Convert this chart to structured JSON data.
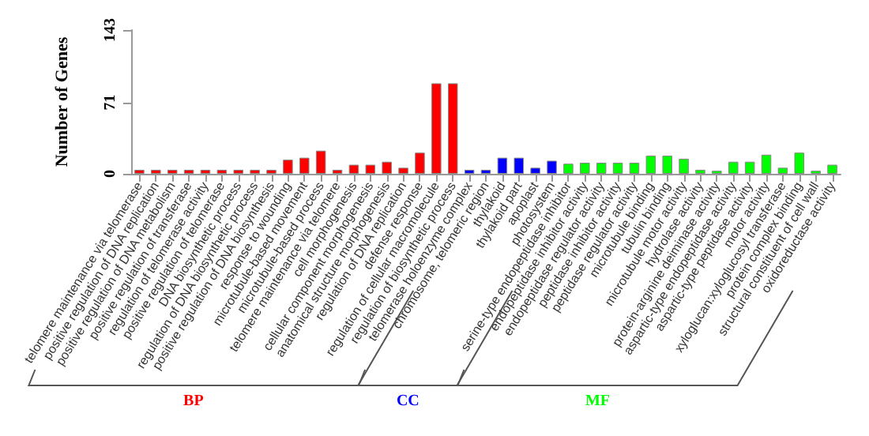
{
  "chart_data": {
    "type": "bar",
    "ylabel": "Number of Genes",
    "ylim": [
      0,
      143
    ],
    "yticks": [
      0,
      71,
      143
    ],
    "grid": false,
    "legend": false,
    "stacked": true,
    "categories": [
      "telomere maintenance via telomerase",
      "positive regulation of DNA replication",
      "positive regulation of DNA metabolism",
      "positive regulation of transferase",
      "regulation of telomerase activity",
      "positive regulation of telomerase",
      "DNA biosynthetic process",
      "regulation of DNA biosynthetic process",
      "positive regulation of DNA biosynthesis",
      "response to wounding",
      "microtubule-based movement",
      "microtubule-based process",
      "telomere maintenance via telomere",
      "cell morphogenesis",
      "cellular component morphogenesis",
      "anatomical structure morphogenesis",
      "regulation of DNA replication",
      "defense response",
      "regulation of cellular macromolecule",
      "regulation of biosynthetic process",
      "telomerase holoenzyme complex",
      "chromosome, telomeric region",
      "thylakoid",
      "thylakoid part",
      "apoplast",
      "photosystem",
      "serine-type endopeptidase inhibitor",
      "endopeptidase inhibitor activity",
      "endopeptidase regulator activity",
      "peptidase inhibitor activity",
      "peptidase regulator activity",
      "microtubule binding",
      "tubulin binding",
      "microtubule motor activity",
      "hydrolase activity",
      "protein-arginine deiminase activity",
      "aspartic-type endopeptidase activity",
      "aspartic-type peptidase activity",
      "motor activity",
      "xyloglucan:xyloglucosyl transferase",
      "protein complex binding",
      "structural constituent of cell wall",
      "oxidoreductase activity"
    ],
    "series": [
      {
        "name": "BP",
        "color": "#ff0000",
        "values": [
          4,
          4,
          4,
          4,
          4,
          4,
          4,
          4,
          4,
          14,
          16,
          23,
          4,
          9,
          9,
          12,
          6,
          21,
          90,
          90,
          null,
          null,
          null,
          null,
          null,
          null,
          null,
          null,
          null,
          null,
          null,
          null,
          null,
          null,
          null,
          null,
          null,
          null,
          null,
          null,
          null,
          null,
          null
        ]
      },
      {
        "name": "CC",
        "color": "#0000ff",
        "values": [
          null,
          null,
          null,
          null,
          null,
          null,
          null,
          null,
          null,
          null,
          null,
          null,
          null,
          null,
          null,
          null,
          null,
          null,
          null,
          null,
          4,
          4,
          16,
          16,
          6,
          13,
          null,
          null,
          null,
          null,
          null,
          null,
          null,
          null,
          null,
          null,
          null,
          null,
          null,
          null,
          null,
          null,
          null
        ]
      },
      {
        "name": "MF",
        "color": "#00ff00",
        "values": [
          null,
          null,
          null,
          null,
          null,
          null,
          null,
          null,
          null,
          null,
          null,
          null,
          null,
          null,
          null,
          null,
          null,
          null,
          null,
          null,
          null,
          null,
          null,
          null,
          null,
          null,
          10,
          11,
          11,
          11,
          11,
          18,
          18,
          15,
          4,
          3,
          12,
          12,
          19,
          6,
          21,
          3,
          9
        ]
      }
    ]
  }
}
